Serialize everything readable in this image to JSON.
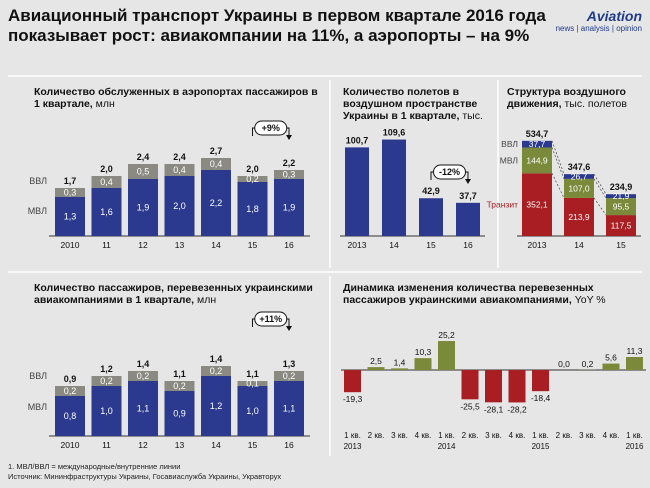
{
  "title": "Авиационный транспорт Украины в первом квартале 2016 года показывает рост: авиакомпании на 11%, а аэропорты – на 9%",
  "logo": {
    "name": "Aviation",
    "subtitle": "news | analysis | opinion"
  },
  "footnote": "1. МВЛ/ВВЛ = международные/внутренние линии",
  "source": "Источник: Мининфраструктуры Украины, Госавиаслужба Украины, Укравторух",
  "colors": {
    "mvl": "#2b3a8f",
    "vvl": "#8a8a82",
    "transit": "#a91e22",
    "green": "#7a8a3a",
    "red": "#a91e22",
    "blue_dark": "#2b3a8f"
  },
  "chart_data": [
    {
      "id": "airports",
      "type": "bar",
      "stacked": true,
      "title": "Количество обслуженных в аэропортах пассажиров в 1 квартале,",
      "unit": "млн",
      "categories": [
        "2010",
        "11",
        "12",
        "13",
        "14",
        "15",
        "16"
      ],
      "series": [
        {
          "name": "МВЛ",
          "values": [
            1.3,
            1.6,
            1.9,
            2.0,
            2.2,
            1.8,
            1.9
          ],
          "labels": [
            "1,3",
            "1,6",
            "1,9",
            "2,0",
            "2,2",
            "1,8",
            "1,9"
          ]
        },
        {
          "name": "ВВЛ",
          "values": [
            0.3,
            0.4,
            0.5,
            0.4,
            0.4,
            0.2,
            0.3
          ],
          "labels": [
            "0,3",
            "0,4",
            "0,5",
            "0,4",
            "0,4",
            "0,2",
            "0,3"
          ]
        }
      ],
      "totals": [
        "1,7",
        "2,0",
        "2,4",
        "2,4",
        "2,7",
        "2,0",
        "2,2"
      ],
      "annotation": "+9%"
    },
    {
      "id": "flights",
      "type": "bar",
      "title": "Количество полетов в воздушном пространстве Украины в 1 квартале,",
      "unit": "тыс.",
      "categories": [
        "2013",
        "14",
        "15",
        "16"
      ],
      "values": [
        100.7,
        109.6,
        42.9,
        37.7
      ],
      "labels": [
        "100,7",
        "109,6",
        "42,9",
        "37,7"
      ],
      "annotation": "-12%"
    },
    {
      "id": "structure",
      "type": "bar",
      "stacked": true,
      "title": "Структура воздушного движения,",
      "unit": "тыс. полетов",
      "categories": [
        "2013",
        "14",
        "15"
      ],
      "series": [
        {
          "name": "Транзит",
          "values": [
            352.1,
            213.9,
            117.5
          ],
          "labels": [
            "352,1",
            "213,9",
            "117,5"
          ]
        },
        {
          "name": "МВЛ",
          "values": [
            144.9,
            107.0,
            95.5
          ],
          "labels": [
            "144,9",
            "107,0",
            "95,5"
          ]
        },
        {
          "name": "ВВЛ",
          "values": [
            37.7,
            26.7,
            21.9
          ],
          "labels": [
            "37,7",
            "26,7",
            "21,9"
          ]
        }
      ],
      "totals": [
        "534,7",
        "347,6",
        "234,9"
      ]
    },
    {
      "id": "airlines",
      "type": "bar",
      "stacked": true,
      "title": "Количество пассажиров, перевезенных украинскими авиакомпаниями в 1 квартале,",
      "unit": "млн",
      "categories": [
        "2010",
        "11",
        "12",
        "13",
        "14",
        "15",
        "16"
      ],
      "series": [
        {
          "name": "МВЛ",
          "values": [
            0.8,
            1.0,
            1.1,
            0.9,
            1.2,
            1.0,
            1.1
          ],
          "labels": [
            "0,8",
            "1,0",
            "1,1",
            "0,9",
            "1,2",
            "1,0",
            "1,1"
          ]
        },
        {
          "name": "ВВЛ",
          "values": [
            0.2,
            0.2,
            0.2,
            0.2,
            0.2,
            0.1,
            0.2
          ],
          "labels": [
            "0,2",
            "0,2",
            "0,2",
            "0,2",
            "0,2",
            "0,1",
            "0,2"
          ]
        }
      ],
      "totals": [
        "0,9",
        "1,2",
        "1,4",
        "1,1",
        "1,4",
        "1,1",
        "1,3"
      ],
      "annotation": "+11%"
    },
    {
      "id": "yoy",
      "type": "bar",
      "title": "Динамика изменения количества перевезенных пассажиров украинскими авиакомпаниями,",
      "unit": "YoY %",
      "categories": [
        "1 кв.",
        "2 кв.",
        "3 кв.",
        "4 кв.",
        "1 кв.",
        "2 кв.",
        "3 кв.",
        "4 кв.",
        "1 кв.",
        "2 кв.",
        "3 кв.",
        "4 кв.",
        "1 кв."
      ],
      "years": [
        {
          "label": "2013",
          "index": 0
        },
        {
          "label": "2014",
          "index": 4
        },
        {
          "label": "2015",
          "index": 8
        },
        {
          "label": "2016",
          "index": 12
        }
      ],
      "values": [
        -19.3,
        2.5,
        1.4,
        10.3,
        25.2,
        -25.5,
        -28.1,
        -28.2,
        -18.4,
        0.0,
        0.2,
        5.6,
        11.3
      ],
      "labels": [
        "-19,3",
        "2,5",
        "1,4",
        "10,3",
        "25,2",
        "-25,5",
        "-28,1",
        "-28,2",
        "-18,4",
        "0,0",
        "0,2",
        "5,6",
        "11,3"
      ]
    }
  ]
}
